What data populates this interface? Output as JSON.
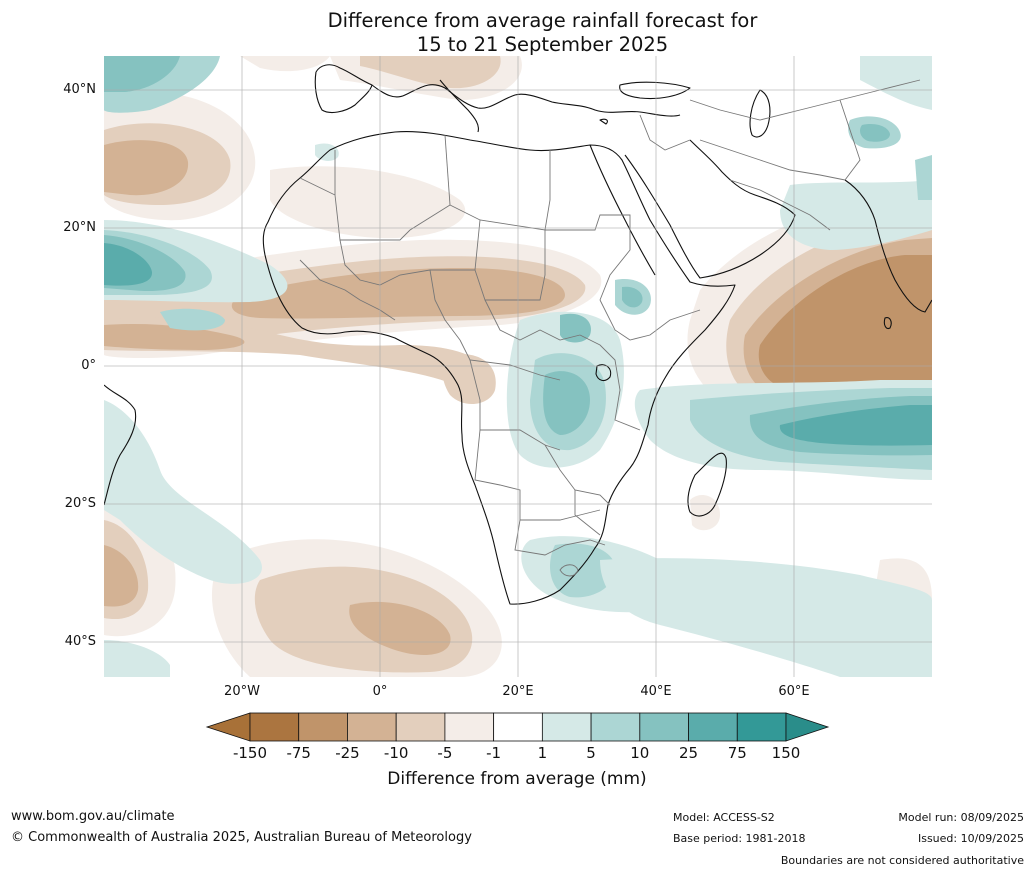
{
  "map": {
    "title_line1": "Difference from average rainfall forecast for",
    "title_line2": "15 to 21 September 2025",
    "lat_labels": [
      "40°N",
      "20°N",
      "0°",
      "20°S",
      "40°S"
    ],
    "lon_labels": [
      "20°W",
      "0°",
      "20°E",
      "40°E",
      "60°E"
    ]
  },
  "legend": {
    "title": "Difference from average (mm)",
    "ticks": [
      "-150",
      "-75",
      "-25",
      "-10",
      "-5",
      "-1",
      "1",
      "5",
      "10",
      "25",
      "75",
      "150"
    ],
    "colors": {
      "below_min": "#a87138",
      "bins": [
        "#ab7540",
        "#c0946a",
        "#d3b294",
        "#e3cfbd",
        "#f4ede8",
        "#ffffff",
        "#d5e9e7",
        "#acd6d4",
        "#85c2c0",
        "#5aacab",
        "#339997"
      ],
      "above_max": "#2a8d8a"
    }
  },
  "footer": {
    "website": "www.bom.gov.au/climate",
    "copyright": "© Commonwealth of Australia 2025, Australian Bureau of Meteorology",
    "model": "Model: ACCESS-S2",
    "base_period": "Base period: 1981-2018",
    "model_run": "Model run: 08/09/2025",
    "issued": "Issued: 10/09/2025",
    "disclaimer": "Boundaries are not considered authoritative"
  }
}
